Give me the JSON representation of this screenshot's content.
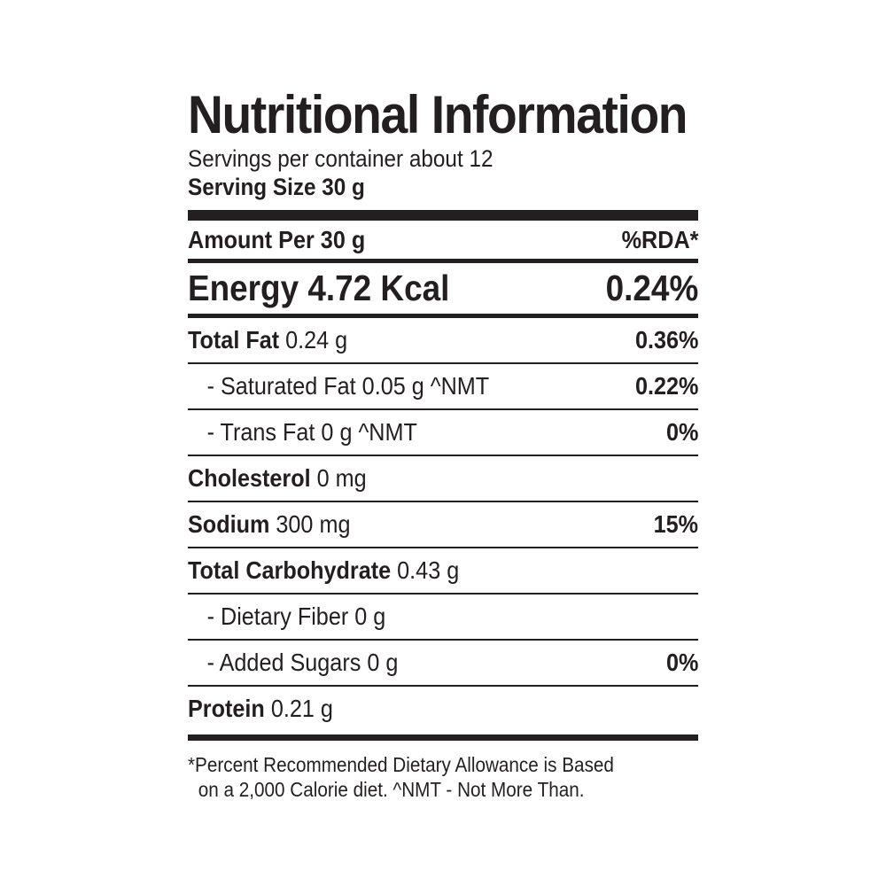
{
  "title": "Nutritional Information",
  "servings": "Servings per container about 12",
  "serving_size": "Serving Size 30 g",
  "header": {
    "amount_per": "Amount Per 30 g",
    "rda": "%RDA*"
  },
  "energy": {
    "label": "Energy 4.72 Kcal",
    "rda": "0.24%"
  },
  "nutrients": [
    {
      "name": "Total Fat",
      "amount": " 0.24 g",
      "rda": "0.36%"
    },
    {
      "name": "- Saturated Fat 0.05 g  ^NMT",
      "amount": "",
      "rda": "0.22%"
    },
    {
      "name": "- Trans Fat 0 g  ^NMT",
      "amount": "",
      "rda": "0%"
    },
    {
      "name": "Cholesterol",
      "amount": " 0 mg",
      "rda": ""
    },
    {
      "name": "Sodium",
      "amount": " 300 mg",
      "rda": "15%"
    },
    {
      "name": "Total Carbohydrate",
      "amount": " 0.43 g",
      "rda": ""
    },
    {
      "name": "- Dietary Fiber 0 g",
      "amount": "",
      "rda": ""
    },
    {
      "name": "- Added Sugars 0 g",
      "amount": "",
      "rda": "0%"
    },
    {
      "name": "Protein",
      "amount": " 0.21 g",
      "rda": ""
    }
  ],
  "footnote": {
    "line1": "*Percent Recommended Dietary Allowance is Based",
    "line2": "on a 2,000 Calorie diet.  ^NMT - Not More Than."
  }
}
